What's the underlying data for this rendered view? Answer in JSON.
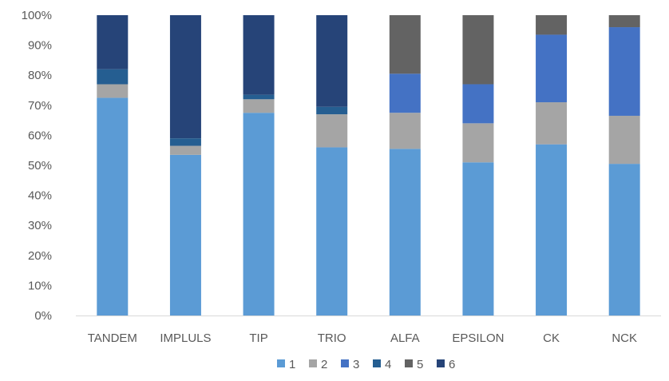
{
  "chart_data": {
    "type": "bar",
    "stacked": true,
    "normalized": true,
    "title": "",
    "xlabel": "",
    "ylabel": "",
    "ylim": [
      0,
      100
    ],
    "y_ticks": [
      "0%",
      "10%",
      "20%",
      "30%",
      "40%",
      "50%",
      "60%",
      "70%",
      "80%",
      "90%",
      "100%"
    ],
    "grid": false,
    "legend_position": "bottom",
    "categories": [
      "TANDEM",
      "IMPLULS",
      "TIP",
      "TRIO",
      "ALFA",
      "EPSILON",
      "CK",
      "NCK"
    ],
    "series": [
      {
        "name": "1",
        "color": "#5B9BD5",
        "values": [
          72.5,
          53.5,
          67.5,
          56.0,
          55.5,
          51.0,
          57.0,
          50.5
        ]
      },
      {
        "name": "2",
        "color": "#A5A5A5",
        "values": [
          4.5,
          3.0,
          4.5,
          11.0,
          12.0,
          13.0,
          14.0,
          16.0
        ]
      },
      {
        "name": "3",
        "color": "#4472C4",
        "values": [
          0.0,
          0.0,
          0.0,
          0.0,
          13.0,
          13.0,
          22.5,
          29.5
        ]
      },
      {
        "name": "4",
        "color": "#255E91",
        "values": [
          5.0,
          2.5,
          1.5,
          2.5,
          0.0,
          0.0,
          0.0,
          0.0
        ]
      },
      {
        "name": "5",
        "color": "#636363",
        "values": [
          0.0,
          0.0,
          0.0,
          0.0,
          19.5,
          23.0,
          6.5,
          4.0
        ]
      },
      {
        "name": "6",
        "color": "#264478",
        "values": [
          18.0,
          41.0,
          26.5,
          30.5,
          0.0,
          0.0,
          0.0,
          0.0
        ]
      }
    ]
  }
}
